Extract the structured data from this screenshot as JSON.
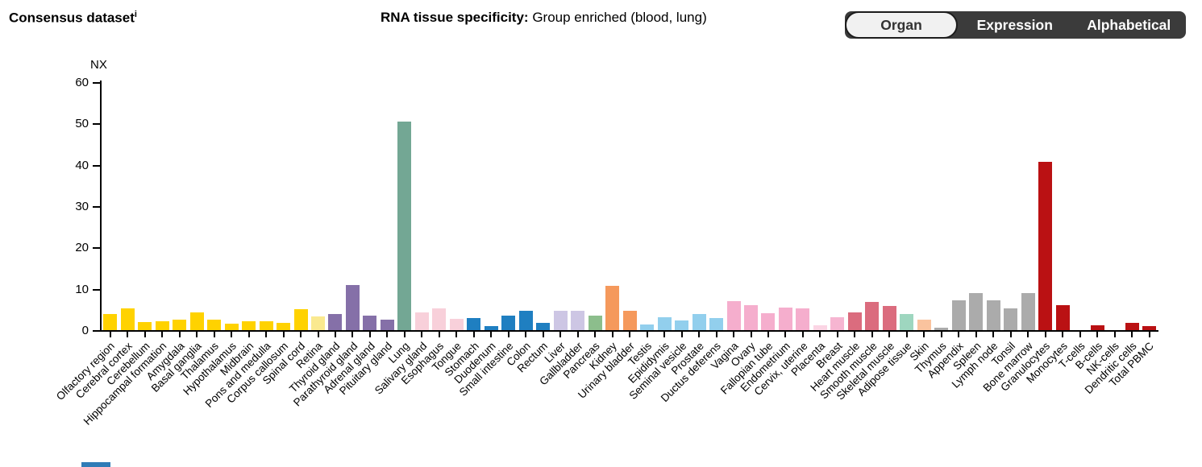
{
  "header": {
    "title": "Consensus dataset",
    "title_superscript": "i",
    "subtitle_label": "RNA tissue specificity:",
    "subtitle_value": " Group enriched (blood, lung)"
  },
  "toolbar": {
    "buttons": [
      {
        "label": "Organ",
        "selected": true
      },
      {
        "label": "Expression",
        "selected": false
      },
      {
        "label": "Alphabetical",
        "selected": false
      }
    ]
  },
  "colors": {
    "toggle_background": "#3b3b3b",
    "toggle_selected_background": "#f1f1f1",
    "toggle_selected_text": "#333333",
    "toggle_text": "#ffffff",
    "axis": "#000000",
    "partial_blue_element": "#2f7cb7"
  },
  "chart_data": {
    "type": "bar",
    "title": "",
    "xlabel": "",
    "ylabel": "NX",
    "ylim": [
      0,
      60
    ],
    "yticks": [
      0,
      10,
      20,
      30,
      40,
      50,
      60
    ],
    "grid": false,
    "legend": "none",
    "categories": [
      "Olfactory region",
      "Cerebral cortex",
      "Cerebellum",
      "Hippocampal formation",
      "Amygdala",
      "Basal ganglia",
      "Thalamus",
      "Hypothalamus",
      "Midbrain",
      "Pons and medulla",
      "Corpus callosum",
      "Spinal cord",
      "Retina",
      "Thyroid gland",
      "Parathyroid gland",
      "Adrenal gland",
      "Pituitary gland",
      "Lung",
      "Salivary gland",
      "Esophagus",
      "Tongue",
      "Stomach",
      "Duodenum",
      "Small intestine",
      "Colon",
      "Rectum",
      "Liver",
      "Gallbladder",
      "Pancreas",
      "Kidney",
      "Urinary bladder",
      "Testis",
      "Epididymis",
      "Seminal vesicle",
      "Prostate",
      "Ductus deferens",
      "Vagina",
      "Ovary",
      "Fallopian tube",
      "Endometrium",
      "Cervix, uterine",
      "Placenta",
      "Breast",
      "Heart muscle",
      "Smooth muscle",
      "Skeletal muscle",
      "Adipose tissue",
      "Skin",
      "Thymus",
      "Appendix",
      "Spleen",
      "Lymph node",
      "Tonsil",
      "Bone marrow",
      "Granulocytes",
      "Monocytes",
      "T-cells",
      "B-cells",
      "NK-cells",
      "Dendritic cells",
      "Total PBMC"
    ],
    "values": [
      3.8,
      5.2,
      2.0,
      2.1,
      2.6,
      4.3,
      2.5,
      1.6,
      2.2,
      2.1,
      1.8,
      5.1,
      3.4,
      3.9,
      11.0,
      3.5,
      2.5,
      50.4,
      4.2,
      5.3,
      2.7,
      2.9,
      0.9,
      3.5,
      4.6,
      1.7,
      4.6,
      4.6,
      3.5,
      10.7,
      4.7,
      1.3,
      3.1,
      2.3,
      3.9,
      2.9,
      7.0,
      6.0,
      4.0,
      5.4,
      5.3,
      1.1,
      3.2,
      4.2,
      6.9,
      5.8,
      3.9,
      2.6,
      0.6,
      7.2,
      9.0,
      7.2,
      5.3,
      8.9,
      40.7,
      6.0,
      0.0,
      1.2,
      0.0,
      1.8,
      1.0
    ],
    "bar_colors": [
      "#FFD200",
      "#FFD200",
      "#FFD200",
      "#FFD200",
      "#FFD200",
      "#FFD200",
      "#FFD200",
      "#FFD200",
      "#FFD200",
      "#FFD200",
      "#FFD200",
      "#FFD200",
      "#FAE98F",
      "#8570A8",
      "#8570A8",
      "#8570A8",
      "#8570A8",
      "#73A794",
      "#F8D0DA",
      "#F8D0DA",
      "#F8D0DA",
      "#1F7FC1",
      "#1F7FC1",
      "#1F7FC1",
      "#1F7FC1",
      "#1F7FC1",
      "#CDC6E4",
      "#CDC6E4",
      "#8CBE8C",
      "#F5995C",
      "#F5995C",
      "#92CFED",
      "#92CFED",
      "#92CFED",
      "#92CFED",
      "#92CFED",
      "#F5AECD",
      "#F5AECD",
      "#F5AECD",
      "#F5AECD",
      "#F5AECD",
      "#FBD5E4",
      "#F6B5D1",
      "#DB6C7E",
      "#DB6C7E",
      "#DB6C7E",
      "#9ED6BF",
      "#FAC39E",
      "#ABABAB",
      "#ABABAB",
      "#ABABAB",
      "#ABABAB",
      "#ABABAB",
      "#ABABAB",
      "#BA1113",
      "#BA1113",
      "#BA1113",
      "#BA1113",
      "#BA1113",
      "#BA1113",
      "#BA1113"
    ]
  }
}
